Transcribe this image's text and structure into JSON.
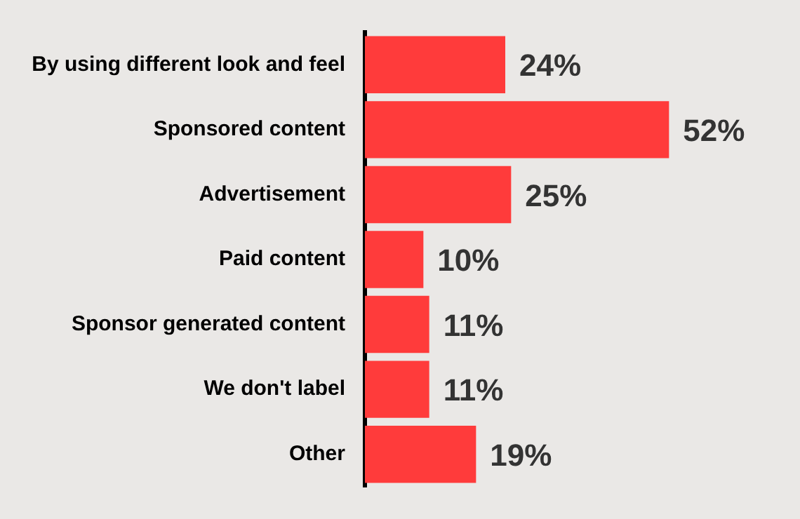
{
  "chart_data": {
    "type": "bar",
    "orientation": "horizontal",
    "categories": [
      "By using different look and feel",
      "Sponsored content",
      "Advertisement",
      "Paid content",
      "Sponsor generated content",
      "We don't label",
      "Other"
    ],
    "values": [
      24,
      52,
      25,
      10,
      11,
      11,
      19
    ],
    "value_labels": [
      "24%",
      "52%",
      "25%",
      "10%",
      "11%",
      "11%",
      "19%"
    ],
    "color": "#ff3b3b",
    "legend": false,
    "tick_labels": "y"
  }
}
